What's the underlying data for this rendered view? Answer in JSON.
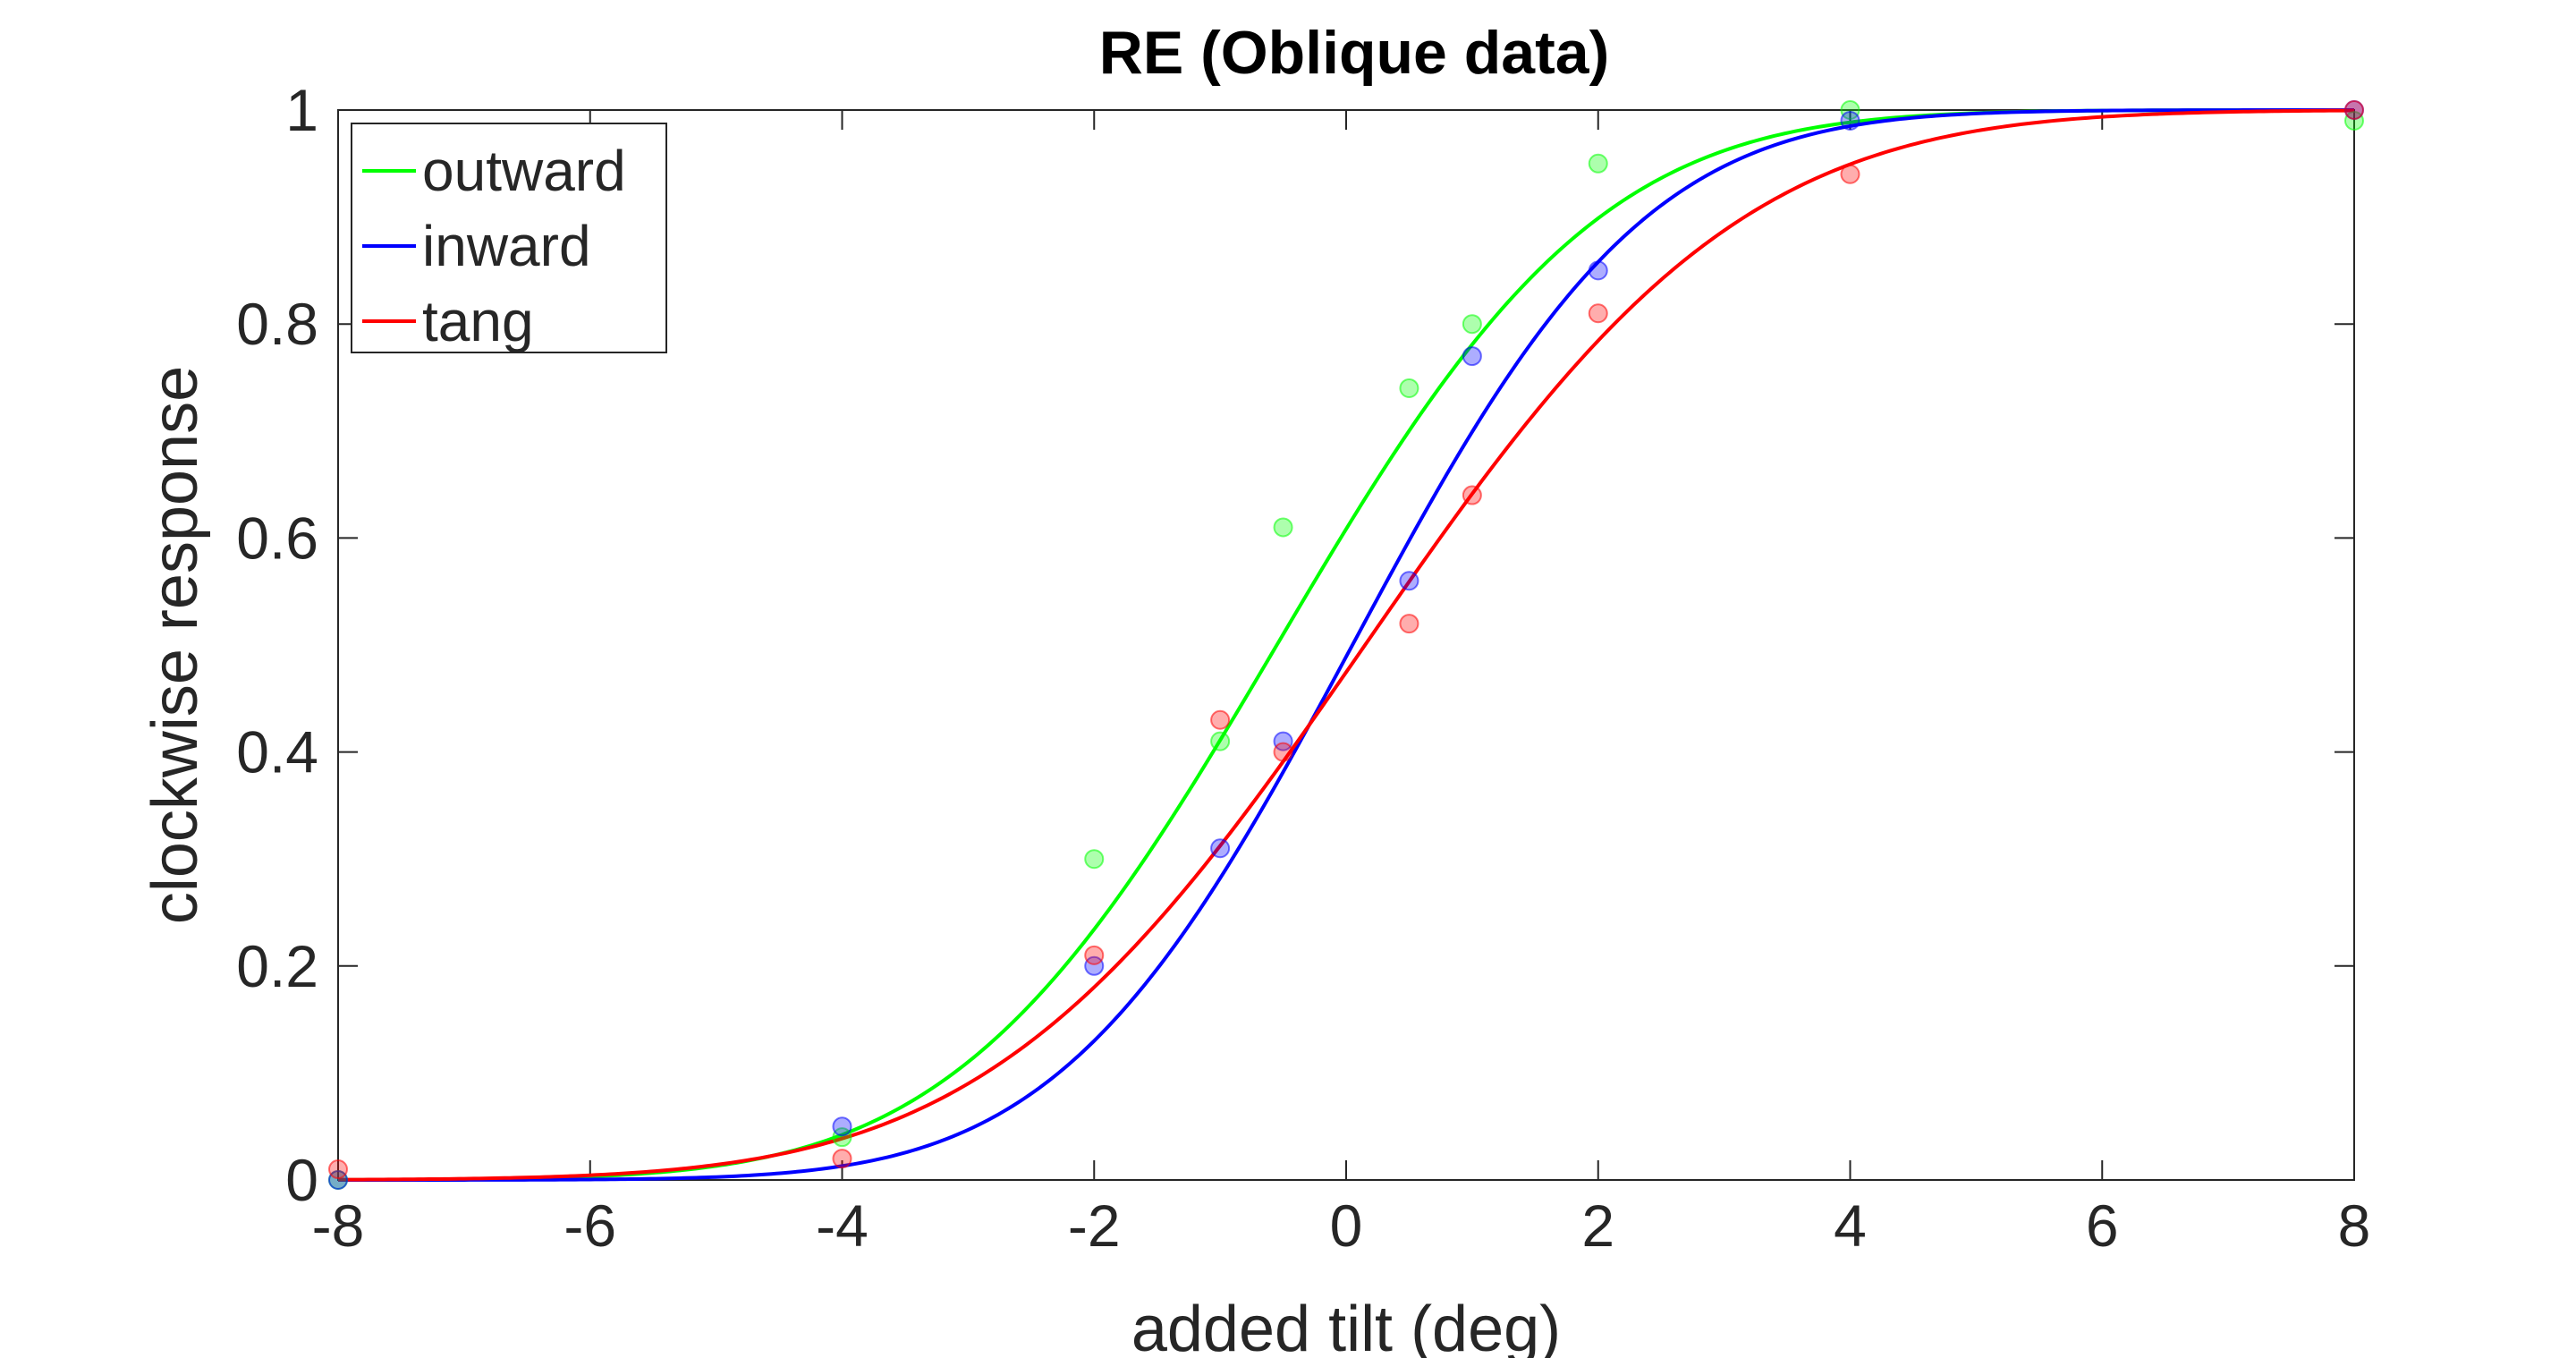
{
  "chart_data": {
    "type": "scatter",
    "title": "RE (Oblique data)",
    "xlabel": "added tilt (deg)",
    "ylabel": "clockwise response",
    "xlim": [
      -8,
      8
    ],
    "ylim": [
      0,
      1
    ],
    "xticks": [
      -8,
      -6,
      -4,
      -2,
      0,
      2,
      4,
      6,
      8
    ],
    "xtick_labels": [
      "-8",
      "-6",
      "-4",
      "-2",
      "0",
      "2",
      "4",
      "6",
      "8"
    ],
    "yticks": [
      0,
      0.2,
      0.4,
      0.6,
      0.8,
      1
    ],
    "ytick_labels": [
      "0",
      "0.2",
      "0.4",
      "0.6",
      "0.8",
      "1"
    ],
    "grid": false,
    "legend_position": "top-left",
    "series": [
      {
        "name": "outward",
        "color": "#00ff00",
        "x": [
          -8,
          -4,
          -2,
          -1,
          -0.5,
          0.5,
          1,
          2,
          4,
          8
        ],
        "y": [
          0.0,
          0.04,
          0.3,
          0.41,
          0.61,
          0.74,
          0.8,
          0.95,
          1.0,
          0.99
        ],
        "fit": {
          "mu": -0.55,
          "sigma": 2.0
        }
      },
      {
        "name": "inward",
        "color": "#0000ff",
        "x": [
          -8,
          -4,
          -2,
          -1,
          -0.5,
          0.5,
          1,
          2,
          4,
          8
        ],
        "y": [
          0.0,
          0.05,
          0.2,
          0.31,
          0.41,
          0.56,
          0.77,
          0.85,
          0.99,
          1.0
        ],
        "fit": {
          "mu": 0.05,
          "sigma": 1.82
        }
      },
      {
        "name": "tang",
        "color": "#ff0000",
        "x": [
          -8,
          -4,
          -2,
          -1,
          -0.5,
          0.5,
          1,
          2,
          4,
          8
        ],
        "y": [
          0.01,
          0.02,
          0.21,
          0.43,
          0.4,
          0.52,
          0.64,
          0.81,
          0.94,
          1.0
        ],
        "fit": {
          "mu": 0.15,
          "sigma": 2.35
        }
      }
    ]
  }
}
